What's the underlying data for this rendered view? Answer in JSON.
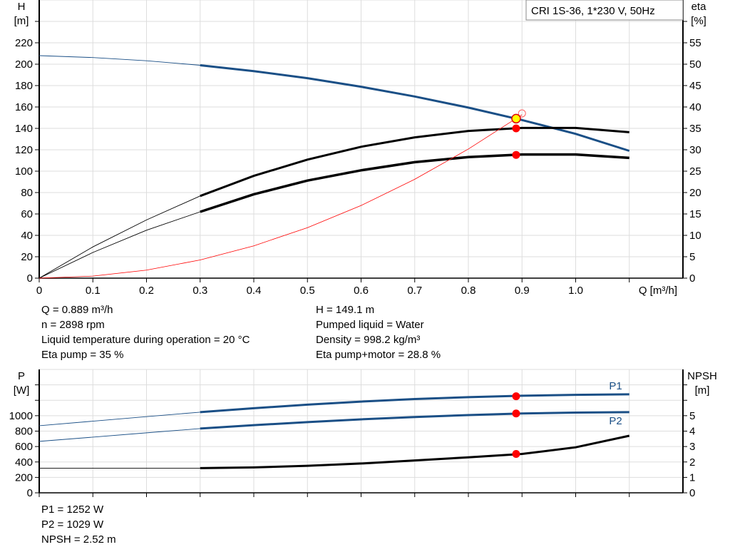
{
  "legend_box": "CRI 1S-36, 1*230 V, 50Hz",
  "chart_data": [
    {
      "type": "line",
      "title": "",
      "xlabel": "Q [m³/h]",
      "ylabel": "H\n[m]",
      "ylabel_line1": "H",
      "ylabel_line2": "[m]",
      "y2label_line1": "eta",
      "y2label_line2": "[%]",
      "xlim": [
        0,
        1.2
      ],
      "ylim": [
        0,
        260
      ],
      "y2lim": [
        0,
        65
      ],
      "xticks": [
        0,
        0.1,
        0.2,
        0.3,
        0.4,
        0.5,
        0.6,
        0.7,
        0.8,
        0.9,
        1.0
      ],
      "xtick_labels": [
        "0",
        "0.1",
        "0.2",
        "0.3",
        "0.4",
        "0.5",
        "0.6",
        "0.7",
        "0.8",
        "0.9",
        "1.0"
      ],
      "yticks": [
        0,
        20,
        40,
        60,
        80,
        100,
        120,
        140,
        160,
        180,
        200,
        220
      ],
      "y2ticks": [
        0,
        5,
        10,
        15,
        20,
        25,
        30,
        35,
        40,
        45,
        50,
        55
      ],
      "grid": true,
      "x": [
        0,
        0.1,
        0.2,
        0.3,
        0.4,
        0.5,
        0.6,
        0.7,
        0.8,
        0.9,
        1.0,
        1.1
      ],
      "series": [
        {
          "key": "H",
          "axis": "left",
          "color": "#1a4f86",
          "values": [
            208,
            206.2,
            203.2,
            199,
            193.5,
            186.9,
            178.9,
            169.8,
            159.4,
            147.8,
            134.9,
            119
          ]
        },
        {
          "key": "eta_pump",
          "axis": "right",
          "color": "#000000",
          "values": [
            0,
            7.3,
            13.6,
            19.2,
            23.9,
            27.7,
            30.7,
            32.9,
            34.4,
            35.1,
            35.1,
            34.1
          ]
        },
        {
          "key": "eta_pump_motor",
          "axis": "right",
          "color": "#000000",
          "values": [
            0,
            6.0,
            11.2,
            15.5,
            19.6,
            22.8,
            25.2,
            27.1,
            28.3,
            28.9,
            28.9,
            28.1
          ]
        },
        {
          "key": "system",
          "axis": "left",
          "color": "#ff0000",
          "x": [
            0,
            0.1,
            0.2,
            0.3,
            0.4,
            0.5,
            0.6,
            0.7,
            0.8,
            0.9
          ],
          "values": [
            0,
            1.9,
            7.5,
            17,
            30.2,
            47.2,
            67.9,
            92.4,
            120.7,
            152.8
          ]
        }
      ],
      "operating_point": {
        "Q": 0.889,
        "H": 149.1,
        "eta_pump": 35,
        "eta_pump_motor": 28.8
      }
    },
    {
      "type": "line",
      "title": "",
      "ylabel_line1": "P",
      "ylabel_line2": "[W]",
      "y2label_line1": "NPSH",
      "y2label_line2": "[m]",
      "xlim": [
        0,
        1.2
      ],
      "ylim": [
        0,
        1600
      ],
      "y2lim": [
        0,
        8
      ],
      "yticks": [
        0,
        200,
        400,
        600,
        800,
        1000
      ],
      "y2ticks": [
        0,
        1,
        2,
        3,
        4,
        5
      ],
      "grid": true,
      "x": [
        0,
        0.1,
        0.2,
        0.3,
        0.4,
        0.5,
        0.6,
        0.7,
        0.8,
        0.9,
        1.0,
        1.1
      ],
      "series": [
        {
          "key": "P1",
          "name": "P1",
          "axis": "left",
          "color": "#1a4f86",
          "values": [
            870,
            929,
            988,
            1046,
            1097,
            1143,
            1183,
            1216,
            1241,
            1259,
            1271,
            1278
          ]
        },
        {
          "key": "P2",
          "name": "P2",
          "axis": "left",
          "color": "#1a4f86",
          "values": [
            667,
            722,
            778,
            833,
            877,
            917,
            953,
            983,
            1008,
            1029,
            1040,
            1046
          ]
        },
        {
          "key": "NPSH",
          "axis": "right",
          "color": "#000000",
          "values": [
            1.6,
            1.6,
            1.6,
            1.6,
            1.65,
            1.75,
            1.9,
            2.1,
            2.3,
            2.52,
            2.95,
            3.7
          ]
        }
      ],
      "operating_point": {
        "Q": 0.889,
        "P1": 1252,
        "P2": 1029,
        "NPSH": 2.52
      }
    }
  ],
  "info_top_left": [
    "Q = 0.889 m³/h",
    "n = 2898 rpm",
    "Liquid temperature during operation = 20 °C",
    "Eta pump = 35 %"
  ],
  "info_top_right": [
    "H = 149.1 m",
    "Pumped liquid = Water",
    "Density = 998.2 kg/m³",
    "Eta pump+motor = 28.8 %"
  ],
  "info_bottom": [
    "P1 = 1252 W",
    "P2 = 1029 W",
    "NPSH = 2.52 m"
  ]
}
